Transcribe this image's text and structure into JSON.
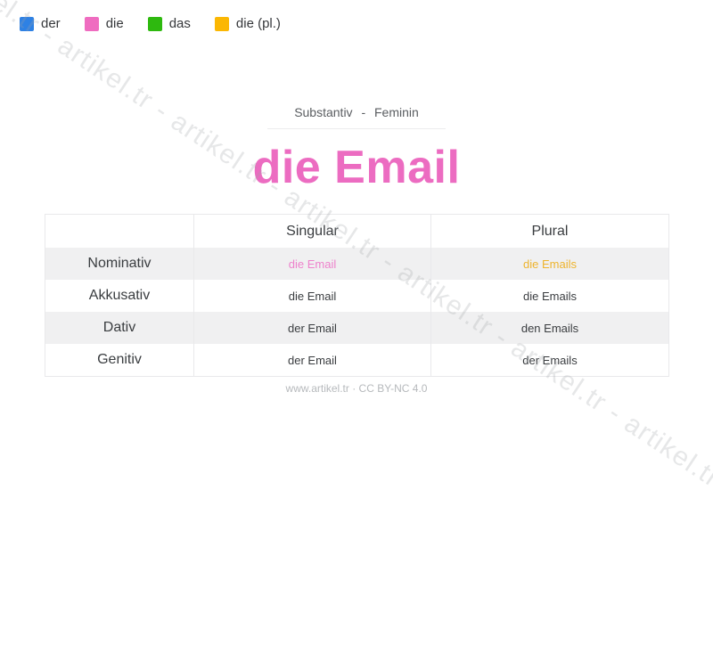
{
  "legend": {
    "items": [
      {
        "label": "der",
        "color": "#2e81e4"
      },
      {
        "label": "die",
        "color": "#ef6cc0"
      },
      {
        "label": "das",
        "color": "#2eb90f"
      },
      {
        "label": "die (pl.)",
        "color": "#fbb703"
      }
    ]
  },
  "heading": {
    "subtitle": "Substantiv - Feminin",
    "title": "die Email",
    "title_color": "#ec6cc1"
  },
  "table": {
    "columns": {
      "case": "",
      "singular": "Singular",
      "plural": "Plural"
    },
    "rows": [
      {
        "case": "Nominativ",
        "singular": "die Email",
        "plural": "die Emails",
        "singular_color": "#ee82cc",
        "plural_color": "#eeb42e"
      },
      {
        "case": "Akkusativ",
        "singular": "die Email",
        "plural": "die Emails"
      },
      {
        "case": "Dativ",
        "singular": "der Email",
        "plural": "den Emails"
      },
      {
        "case": "Genitiv",
        "singular": "der Email",
        "plural": "der Emails"
      }
    ]
  },
  "footer": {
    "text": "www.artikel.tr · CC BY-NC 4.0"
  },
  "watermark": {
    "text": "artikel.tr - artikel.tr - artikel.tr - artikel.tr - artikel.tr - artikel.tr - artikel.tr - artikel.tr - artikel.tr"
  }
}
